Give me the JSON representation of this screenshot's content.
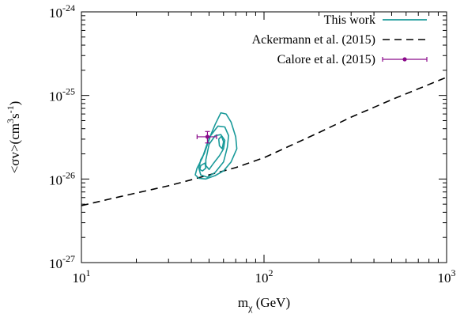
{
  "chart_data": {
    "type": "line",
    "title": "",
    "xlabel": {
      "base": "m",
      "sub": "χ",
      "rest": " (GeV)"
    },
    "ylabel": {
      "a": "<σv>(cm",
      "sup1": "3",
      "b": "s",
      "sup2": "-1",
      "c": ")"
    },
    "x_scale": "log",
    "y_scale": "log",
    "xlim": [
      10,
      1000
    ],
    "ylim": [
      1e-27,
      1e-24
    ],
    "x_ticks": [
      {
        "value": 10,
        "base": "10",
        "exp": "1"
      },
      {
        "value": 100,
        "base": "10",
        "exp": "2"
      },
      {
        "value": 1000,
        "base": "10",
        "exp": "3"
      }
    ],
    "y_ticks": [
      {
        "value": 1e-27,
        "base": "10",
        "exp": "-27"
      },
      {
        "value": 1e-26,
        "base": "10",
        "exp": "-26"
      },
      {
        "value": 1e-25,
        "base": "10",
        "exp": "-25"
      },
      {
        "value": 1e-24,
        "base": "10",
        "exp": "-24"
      }
    ],
    "grid": false,
    "legend_position": "top-right",
    "series": [
      {
        "name": "This work",
        "kind": "contours",
        "color": "#1a9a9a",
        "contours": [
          [
            [
              46,
              1.8e-26
            ],
            [
              49,
              2.7e-26
            ],
            [
              54,
              4.5e-26
            ],
            [
              58,
              6.2e-26
            ],
            [
              62,
              6e-26
            ],
            [
              66,
              4.8e-26
            ],
            [
              70,
              3.2e-26
            ],
            [
              71,
              2.3e-26
            ],
            [
              66,
              1.6e-26
            ],
            [
              60,
              1.25e-26
            ],
            [
              54,
              1.1e-26
            ],
            [
              48,
              1e-26
            ],
            [
              44,
              1.02e-26
            ],
            [
              42,
              1.12e-26
            ],
            [
              43,
              1.35e-26
            ],
            [
              46,
              1.8e-26
            ]
          ],
          [
            [
              47,
              2e-26
            ],
            [
              51,
              3.3e-26
            ],
            [
              56,
              4.3e-26
            ],
            [
              61,
              4.2e-26
            ],
            [
              64,
              3.3e-26
            ],
            [
              63,
              2.4e-26
            ],
            [
              60,
              1.6e-26
            ],
            [
              54,
              1.2e-26
            ],
            [
              49,
              1.05e-26
            ],
            [
              45,
              1.12e-26
            ],
            [
              44,
              1.35e-26
            ],
            [
              45,
              1.7e-26
            ],
            [
              47,
              2e-26
            ]
          ],
          [
            [
              48,
              1.7e-26
            ],
            [
              50,
              2.6e-26
            ],
            [
              54,
              3.3e-26
            ],
            [
              58,
              3.4e-26
            ],
            [
              61,
              2.9e-26
            ],
            [
              60,
              2.3e-26
            ],
            [
              57,
              1.9e-26
            ],
            [
              53,
              1.55e-26
            ],
            [
              50,
              1.3e-26
            ],
            [
              48,
              1.45e-26
            ],
            [
              48,
              1.7e-26
            ]
          ],
          [
            [
              56.5,
              3e-26
            ],
            [
              58.5,
              3.25e-26
            ],
            [
              60,
              2.8e-26
            ],
            [
              59,
              2.3e-26
            ],
            [
              57,
              2.5e-26
            ],
            [
              56.5,
              3e-26
            ]
          ],
          [
            [
              45,
              1.45e-26
            ],
            [
              47.5,
              1.55e-26
            ],
            [
              48,
              1.35e-26
            ],
            [
              46,
              1.25e-26
            ],
            [
              44.5,
              1.3e-26
            ],
            [
              45,
              1.45e-26
            ]
          ]
        ]
      },
      {
        "name": "Ackermann et al. (2015)",
        "kind": "line",
        "style": "dashed",
        "color": "#000000",
        "x": [
          10,
          15,
          20,
          30,
          40,
          50,
          60,
          70,
          100,
          150,
          200,
          300,
          400,
          500,
          700,
          1000
        ],
        "y": [
          4.8e-27,
          5.9e-27,
          6.8e-27,
          8.3e-27,
          9.8e-27,
          1.12e-26,
          1.25e-26,
          1.37e-26,
          1.8e-26,
          2.7e-26,
          3.6e-26,
          5.5e-26,
          7.2e-26,
          8.9e-26,
          1.2e-25,
          1.65e-25
        ]
      },
      {
        "name": "Calore et al. (2015)",
        "kind": "errorbar",
        "color": "#8b0a8b",
        "x": 49,
        "y": 3.2e-26,
        "x_range": [
          43,
          55
        ],
        "y_range": [
          2.7e-26,
          3.7e-26
        ]
      }
    ]
  }
}
